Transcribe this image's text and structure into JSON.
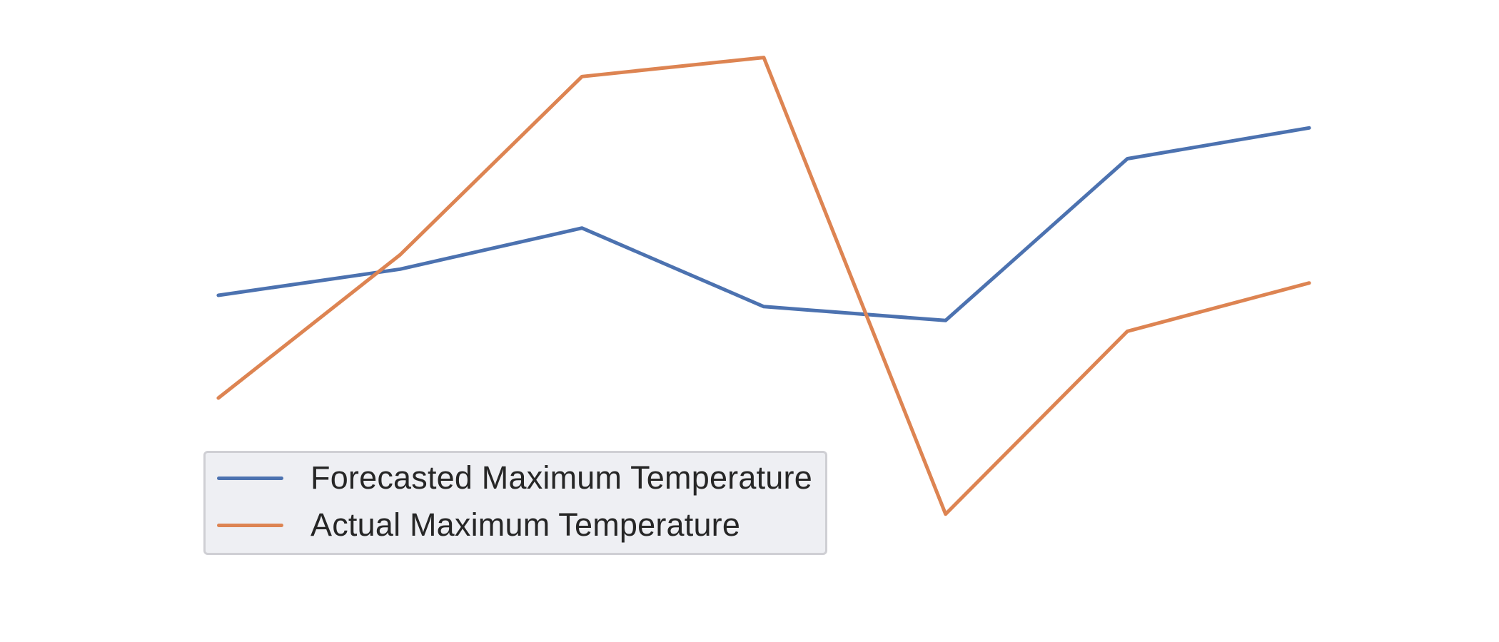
{
  "chart_data": {
    "type": "line",
    "title": "",
    "xlabel": "",
    "ylabel": "",
    "x": [
      1,
      2,
      3,
      4,
      5,
      6,
      7
    ],
    "xlim": [
      0.8,
      7.2
    ],
    "ylim": [
      0,
      100
    ],
    "grid": false,
    "axes_visible": false,
    "legend_position": "lower-left",
    "series": [
      {
        "name": "Forecasted Maximum Temperature",
        "color": "#4c72b0",
        "values": [
          55.0,
          60.1,
          68.1,
          52.8,
          50.1,
          81.6,
          87.6
        ]
      },
      {
        "name": "Actual Maximum Temperature",
        "color": "#dd8452",
        "values": [
          35.0,
          62.9,
          97.6,
          101.3,
          12.4,
          48.0,
          57.4
        ]
      }
    ]
  },
  "legend": {
    "items": [
      {
        "label": "Forecasted Maximum Temperature",
        "color": "#4c72b0"
      },
      {
        "label": "Actual Maximum Temperature",
        "color": "#dd8452"
      }
    ]
  }
}
